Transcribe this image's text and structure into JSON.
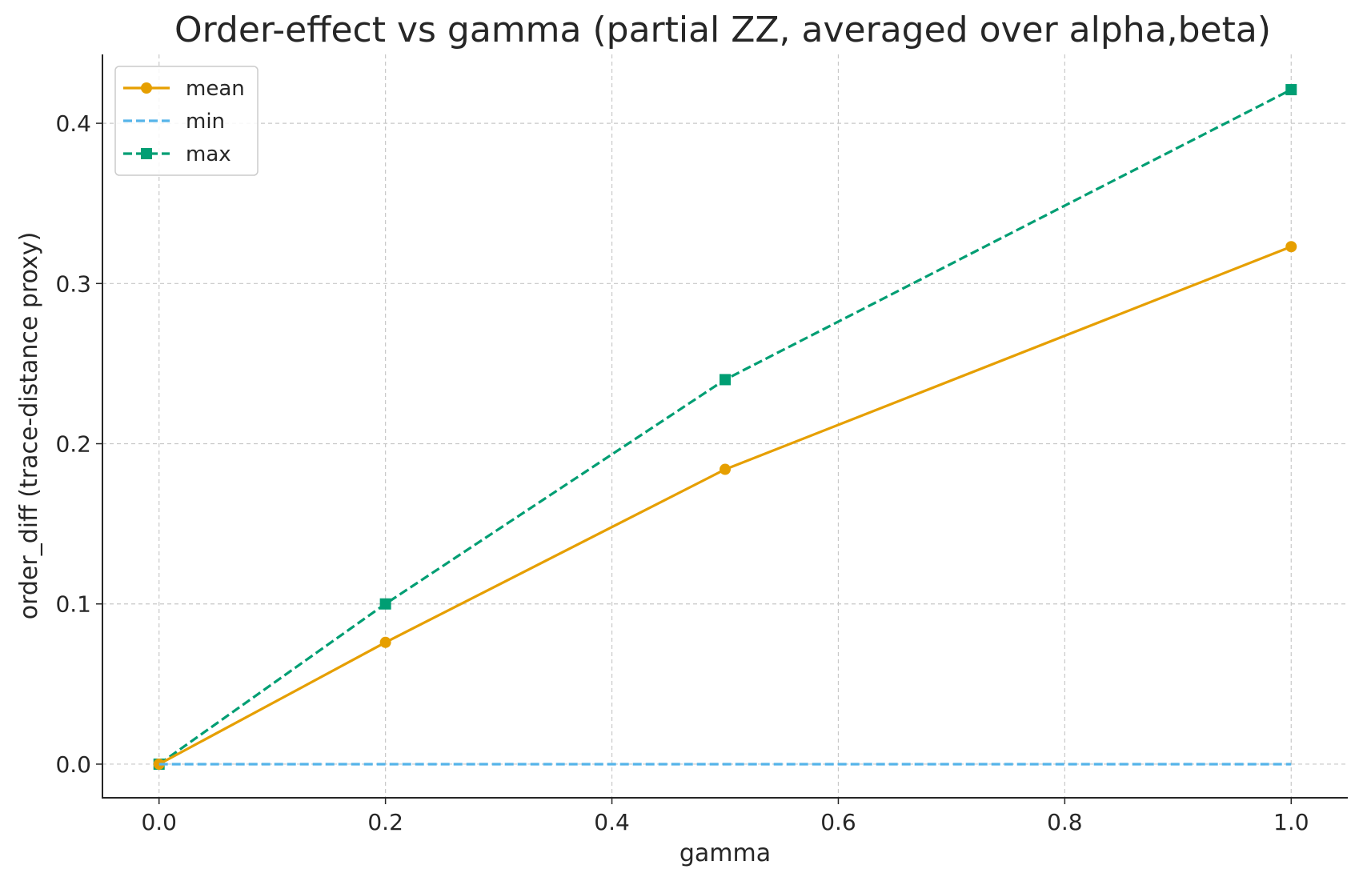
{
  "chart_data": {
    "type": "line",
    "title": "Order-effect vs gamma (partial ZZ, averaged over alpha,beta)",
    "xlabel": "gamma",
    "ylabel": "order_diff (trace-distance proxy)",
    "x": [
      0.0,
      0.2,
      0.5,
      1.0
    ],
    "xlim": [
      -0.05,
      1.05
    ],
    "ylim": [
      -0.021,
      0.443
    ],
    "xticks": [
      0.0,
      0.2,
      0.4,
      0.6,
      0.8,
      1.0
    ],
    "xtick_labels": [
      "0.0",
      "0.2",
      "0.4",
      "0.6",
      "0.8",
      "1.0"
    ],
    "yticks": [
      0.0,
      0.1,
      0.2,
      0.3,
      0.4
    ],
    "ytick_labels": [
      "0.0",
      "0.1",
      "0.2",
      "0.3",
      "0.4"
    ],
    "grid": true,
    "legend_position": "upper-left",
    "series": [
      {
        "name": "mean",
        "values": [
          0.0,
          0.076,
          0.184,
          0.323
        ],
        "color": "#E69F00",
        "linestyle": "solid",
        "marker": "circle"
      },
      {
        "name": "min",
        "values": [
          0.0,
          0.0,
          0.0,
          0.0
        ],
        "color": "#56B4E9",
        "linestyle": "dashed",
        "marker": "none"
      },
      {
        "name": "max",
        "values": [
          0.0,
          0.1,
          0.24,
          0.421
        ],
        "color": "#009E73",
        "linestyle": "dashed",
        "marker": "square"
      }
    ]
  }
}
